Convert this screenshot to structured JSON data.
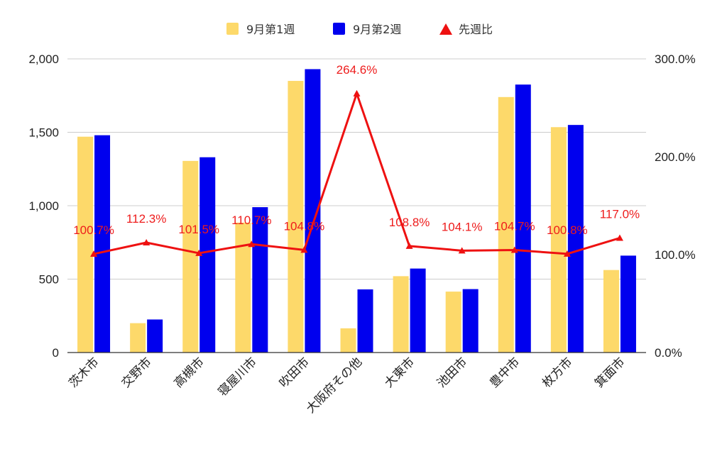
{
  "colors": {
    "week1": "#fdd96a",
    "week2": "#0000ee",
    "ratio": "#ee1111",
    "grid": "#cccccc",
    "axis": "#333333"
  },
  "chart_data": {
    "type": "bar",
    "categories": [
      "茨木市",
      "交野市",
      "高槻市",
      "寝屋川市",
      "吹田市",
      "大阪府その他",
      "大東市",
      "池田市",
      "豊中市",
      "枚方市",
      "箕面市"
    ],
    "series": [
      {
        "name": "9月第1週",
        "type": "bar",
        "axis": "left",
        "values": [
          1470,
          200,
          1305,
          885,
          1850,
          165,
          520,
          415,
          1740,
          1535,
          562
        ]
      },
      {
        "name": "9月第2週",
        "type": "bar",
        "axis": "left",
        "values": [
          1480,
          225,
          1330,
          990,
          1930,
          430,
          572,
          432,
          1825,
          1550,
          660
        ]
      },
      {
        "name": "先週比",
        "type": "line",
        "axis": "right",
        "values": [
          100.7,
          112.3,
          101.5,
          110.7,
          104.8,
          264.6,
          108.8,
          104.1,
          104.7,
          100.8,
          117.0
        ]
      }
    ],
    "data_labels": [
      "100.7%",
      "112.3%",
      "101.5%",
      "110.7%",
      "104.8%",
      "264.6%",
      "108.8%",
      "104.1%",
      "104.7%",
      "100.8%",
      "117.0%"
    ],
    "y_left": {
      "min": 0,
      "max": 2000,
      "ticks": [
        "0",
        "500",
        "1,000",
        "1,500",
        "2,000"
      ]
    },
    "y_right": {
      "min": 0,
      "max": 300,
      "ticks": [
        "0.0%",
        "100.0%",
        "200.0%",
        "300.0%"
      ]
    },
    "legend_position": "top-center",
    "grid": true,
    "title": "",
    "xlabel": "",
    "ylabel": ""
  }
}
